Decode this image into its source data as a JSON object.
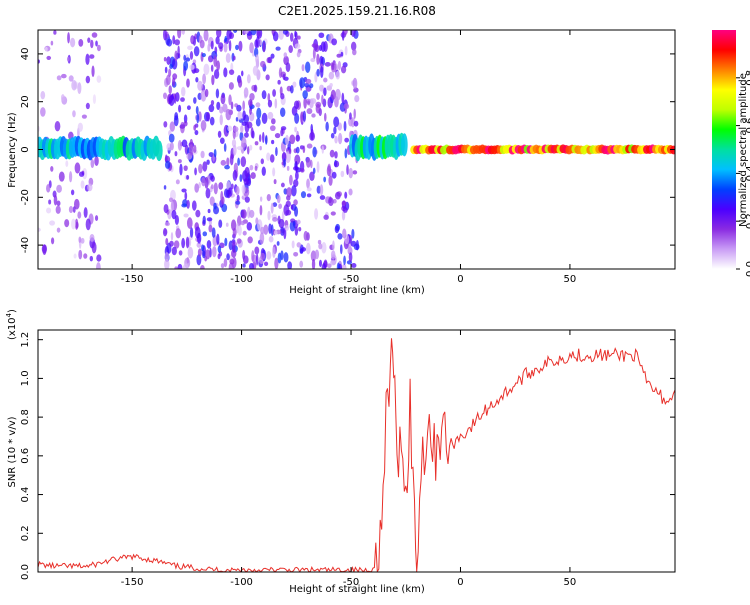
{
  "title": "C2E1.2025.159.21.16.R08",
  "chart_data": [
    {
      "type": "heatmap",
      "xlabel": "Height of straight line (km)",
      "ylabel": "Frequency (Hz)",
      "xlim": [
        -193,
        98
      ],
      "ylim": [
        -50,
        50
      ],
      "x_ticks": [
        -150,
        -100,
        -50,
        0,
        50
      ],
      "y_ticks": [
        -40,
        -20,
        0,
        20,
        40
      ],
      "colorbar": {
        "label": "Normalized spectral amplitude",
        "range": [
          0,
          1
        ],
        "ticks": [
          0.0,
          0.2,
          0.4,
          0.6,
          0.8
        ],
        "colormap": [
          "#ffffff",
          "#c99cf5",
          "#8a2be2",
          "#4b00ff",
          "#0040ff",
          "#00c0ff",
          "#00e0a0",
          "#00ff00",
          "#c0ff00",
          "#ffff00",
          "#ff8000",
          "#ff0000",
          "#ff0080"
        ]
      },
      "regions": [
        {
          "x": [
            -193,
            -165
          ],
          "freq": [
            -50,
            50
          ],
          "level": 0.15,
          "note": "sparse scatter"
        },
        {
          "x": [
            -193,
            -137
          ],
          "freq": [
            -3,
            4
          ],
          "level": 0.45,
          "note": "band"
        },
        {
          "x": [
            -135,
            -47
          ],
          "freq": [
            -50,
            50
          ],
          "level": 0.2,
          "note": "dense speckle"
        },
        {
          "x": [
            -50,
            -25
          ],
          "freq": [
            -3,
            5
          ],
          "level": 0.5,
          "note": "band"
        },
        {
          "x": [
            -22,
            98
          ],
          "freq": [
            -1,
            1
          ],
          "level": 0.9,
          "note": "strong narrow line"
        }
      ]
    },
    {
      "type": "line",
      "xlabel": "Height of straight line (km)",
      "ylabel": "SNR (10 * v/v)",
      "y_multiplier": "(x10",
      "y_multiplier_exp": "4",
      "xlim": [
        -193,
        98
      ],
      "ylim": [
        0,
        1.25
      ],
      "x_ticks": [
        -150,
        -100,
        -50,
        0,
        50
      ],
      "y_ticks": [
        0.0,
        0.2,
        0.4,
        0.6,
        0.8,
        1.0,
        1.2
      ],
      "color": "#e8302a",
      "series": [
        {
          "x": [
            -193,
            -185,
            -170,
            -160,
            -150,
            -140,
            -130,
            -110,
            -90,
            -70,
            -50,
            -40,
            -36,
            -34,
            -32,
            -31,
            -30,
            -29,
            -27,
            -25,
            -23,
            -21,
            -20,
            -18,
            -15,
            -12,
            -10,
            -5,
            0,
            5,
            10,
            20,
            30,
            40,
            50,
            60,
            70,
            80,
            85,
            90,
            95,
            98
          ],
          "y": [
            0.04,
            0.03,
            0.03,
            0.06,
            0.08,
            0.06,
            0.03,
            0.01,
            0.01,
            0.01,
            0.01,
            0.01,
            0.2,
            0.75,
            1.0,
            1.25,
            0.9,
            0.45,
            0.8,
            0.35,
            0.9,
            0.25,
            0.05,
            0.55,
            0.8,
            0.6,
            0.75,
            0.65,
            0.7,
            0.75,
            0.82,
            0.92,
            1.02,
            1.08,
            1.12,
            1.12,
            1.12,
            1.12,
            0.98,
            0.92,
            0.88,
            0.94
          ]
        }
      ]
    }
  ]
}
